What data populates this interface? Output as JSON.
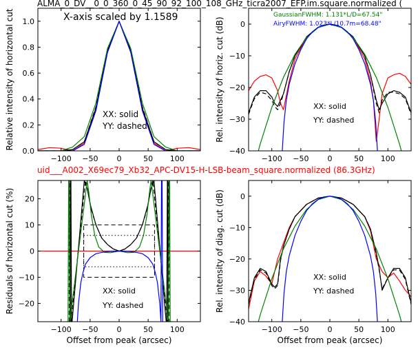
{
  "figure": {
    "top_title": "ALMA_0_DV__0_0_360_0_45_90_92_100_108_GHz_ticra2007_EFP.im.square.normalized (",
    "mid_title": "uid___A002_X69ec79_Xb32_APC-DV15-H-LSB-beam_square.normalized (86.3GHz)",
    "mid_title_color": "#ff0000"
  },
  "chart_data": [
    {
      "id": "p1",
      "type": "line",
      "ylabel": "Relative intensity of horizontal cut",
      "xlabel": "",
      "xlim": [
        -140,
        140
      ],
      "ylim": [
        0,
        1.1
      ],
      "xticks": [
        -100,
        -50,
        0,
        50,
        100
      ],
      "yticks": [
        0.0,
        0.2,
        0.4,
        0.6,
        0.8,
        1.0
      ],
      "ytick_labels": [
        "0.0",
        "0.2",
        "0.4",
        "0.6",
        "0.8",
        "1.0"
      ],
      "annotations": [
        "X-axis scaled by 1.1589",
        "XX: solid",
        "YY: dashed"
      ],
      "series": [
        {
          "color": "#ff0000",
          "style": "solid",
          "x": [
            -140,
            -120,
            -100,
            -90,
            -80,
            -60,
            -40,
            -20,
            0,
            20,
            40,
            60,
            80,
            90,
            100,
            120,
            140
          ],
          "y": [
            0.01,
            0.025,
            0.02,
            0.01,
            0.0,
            0.06,
            0.32,
            0.76,
            1.0,
            0.76,
            0.32,
            0.06,
            0.0,
            0.01,
            0.02,
            0.025,
            0.01
          ]
        },
        {
          "color": "#000000",
          "style": "solid",
          "x": [
            -140,
            -100,
            -80,
            -60,
            -40,
            -20,
            0,
            20,
            40,
            60,
            80,
            100,
            140
          ],
          "y": [
            0.0,
            0.0,
            0.01,
            0.07,
            0.33,
            0.77,
            1.0,
            0.77,
            0.33,
            0.07,
            0.01,
            0.0,
            0.0
          ]
        },
        {
          "color": "#000000",
          "style": "dashed",
          "x": [
            -140,
            -100,
            -80,
            -60,
            -40,
            -20,
            0,
            20,
            40,
            60,
            80,
            100,
            140
          ],
          "y": [
            0.0,
            0.0,
            0.01,
            0.07,
            0.34,
            0.78,
            1.0,
            0.78,
            0.34,
            0.07,
            0.01,
            0.0,
            0.0
          ]
        },
        {
          "color": "#008000",
          "style": "solid",
          "x": [
            -140,
            -100,
            -80,
            -60,
            -40,
            -20,
            0,
            20,
            40,
            60,
            80,
            100,
            140
          ],
          "y": [
            0.0,
            0.0,
            0.03,
            0.11,
            0.37,
            0.79,
            1.0,
            0.79,
            0.37,
            0.11,
            0.03,
            0.0,
            0.0
          ]
        },
        {
          "color": "#0000ff",
          "style": "solid",
          "x": [
            -140,
            -100,
            -80,
            -60,
            -40,
            -20,
            0,
            20,
            40,
            60,
            80,
            100,
            140
          ],
          "y": [
            0.0,
            0.0,
            0.0,
            0.05,
            0.31,
            0.76,
            1.0,
            0.76,
            0.31,
            0.05,
            0.0,
            0.0,
            0.0
          ]
        }
      ]
    },
    {
      "id": "p2",
      "type": "line",
      "ylabel": "Rel. intensity of horiz. cut (dB)",
      "xlabel": "",
      "xlim": [
        -140,
        140
      ],
      "ylim": [
        -40,
        5
      ],
      "xticks": [
        -100,
        -50,
        0,
        50,
        100
      ],
      "yticks": [
        0,
        -10,
        -20,
        -30,
        -40
      ],
      "ytick_labels": [
        "0",
        "−10",
        "−20",
        "−30",
        "−40"
      ],
      "annotations": [
        "XX: solid",
        "YY: dashed"
      ],
      "legend_text": [
        {
          "text": "GaussianFWHM: 1.131*L/D=67.54\"",
          "color": "#008000"
        },
        {
          "text": "AiryFWHM: 1.023*L/10.7m=68.48\"",
          "color": "#0000ff"
        }
      ],
      "series": [
        {
          "color": "#ff0000",
          "style": "solid",
          "x": [
            -140,
            -130,
            -120,
            -110,
            -100,
            -90,
            -85,
            -80,
            -70,
            -60,
            -40,
            -20,
            0,
            20,
            40,
            60,
            70,
            75,
            80,
            85,
            90,
            100,
            110,
            120,
            130,
            140
          ],
          "y": [
            -21,
            -18,
            -16.5,
            -16,
            -17,
            -21,
            -25,
            -27,
            -18,
            -11,
            -4,
            -1,
            0,
            -1,
            -4,
            -11,
            -18,
            -24,
            -37,
            -30,
            -22,
            -17,
            -16,
            -15.5,
            -16.5,
            -19
          ]
        },
        {
          "color": "#000000",
          "style": "solid",
          "x": [
            -140,
            -130,
            -120,
            -110,
            -100,
            -95,
            -90,
            -85,
            -80,
            -70,
            -60,
            -40,
            -20,
            0,
            20,
            40,
            60,
            70,
            80,
            85,
            90,
            100,
            110,
            120,
            130,
            140
          ],
          "y": [
            -28,
            -23,
            -21,
            -21,
            -23,
            -25,
            -26,
            -24,
            -22,
            -15,
            -10,
            -4,
            -1,
            0,
            -1,
            -4,
            -10,
            -16,
            -24,
            -27,
            -25,
            -22,
            -21,
            -21.5,
            -23,
            -28
          ]
        },
        {
          "color": "#000000",
          "style": "dashed",
          "x": [
            -140,
            -130,
            -120,
            -110,
            -100,
            -95,
            -90,
            -85,
            -80,
            -70,
            -60,
            -40,
            -20,
            0,
            20,
            40,
            60,
            70,
            80,
            85,
            90,
            100,
            110,
            120,
            130,
            140
          ],
          "y": [
            -28.5,
            -23.5,
            -21.5,
            -22,
            -24,
            -26,
            -27,
            -25,
            -22,
            -15,
            -10,
            -4,
            -1,
            0,
            -1,
            -4,
            -10,
            -16,
            -25,
            -28,
            -24,
            -21.5,
            -21.5,
            -22,
            -23.5,
            -28.5
          ]
        },
        {
          "color": "#008000",
          "style": "solid",
          "x": [
            -140,
            -120,
            -100,
            -80,
            -60,
            -40,
            -20,
            0,
            20,
            40,
            60,
            80,
            100,
            120,
            140
          ],
          "y": [
            -51.5,
            -37.8,
            -26.3,
            -16.8,
            -9.5,
            -4.2,
            -1.1,
            0,
            -1.1,
            -4.2,
            -9.5,
            -16.8,
            -26.3,
            -37.8,
            -51.5
          ]
        },
        {
          "color": "#0000ff",
          "style": "solid",
          "x": [
            -82,
            -79,
            -75,
            -70,
            -60,
            -50,
            -40,
            -30,
            -20,
            -10,
            0,
            10,
            20,
            30,
            40,
            50,
            60,
            70,
            75,
            79,
            82
          ],
          "y": [
            -40,
            -31,
            -24,
            -19,
            -12.5,
            -8,
            -4.6,
            -2.4,
            -1,
            -0.25,
            0,
            -0.25,
            -1,
            -2.4,
            -4.6,
            -8,
            -12.5,
            -19,
            -24,
            -31,
            -40
          ]
        }
      ]
    },
    {
      "id": "p3",
      "type": "line",
      "ylabel": "Residuals of horizontal cut (%)",
      "xlabel": "Offset from peak (arcsec)",
      "xlim": [
        -140,
        140
      ],
      "ylim": [
        -27,
        27
      ],
      "xticks": [
        -100,
        -50,
        0,
        50,
        100
      ],
      "yticks": [
        20,
        10,
        0,
        -10,
        -20
      ],
      "ytick_labels": [
        "20",
        "10",
        "0",
        "−10",
        "−20"
      ],
      "annotations": [
        "XX: solid",
        "YY: dashed"
      ],
      "series": [
        {
          "color": "#ff0000",
          "style": "solid",
          "x": [
            -140,
            140
          ],
          "y": [
            0,
            0
          ]
        },
        {
          "color": "#000000",
          "style": "solid",
          "x": [
            -84,
            -84,
            -83,
            -82,
            -81,
            -60,
            -55,
            -50,
            -40,
            -30,
            -20,
            -10,
            0,
            10,
            20,
            30,
            40,
            50,
            55,
            60,
            81,
            82,
            83,
            84,
            84
          ],
          "y": [
            -27,
            27,
            27,
            -27,
            -27,
            27,
            24,
            18,
            10,
            5,
            2.5,
            0.8,
            0,
            0.8,
            2.5,
            5,
            10,
            18,
            24,
            27,
            -27,
            -27,
            27,
            27,
            -27
          ]
        },
        {
          "color": "#000000",
          "style": "dashed",
          "x": [
            -86,
            -86,
            -85,
            -84,
            -83,
            -58,
            -53,
            -48,
            -40,
            -30,
            -20,
            -10,
            0,
            10,
            20,
            30,
            40,
            48,
            53,
            58,
            83,
            84,
            85,
            86,
            86
          ],
          "y": [
            -27,
            27,
            27,
            -27,
            -27,
            27,
            22,
            16,
            10,
            5,
            2.5,
            0.8,
            0,
            0.8,
            2.5,
            5,
            10,
            16,
            22,
            27,
            -27,
            -27,
            27,
            27,
            -27
          ]
        },
        {
          "color": "#008000",
          "style": "solid",
          "x": [
            -92,
            -88,
            -87,
            -86,
            -85,
            -55,
            -52,
            -48,
            -42,
            -35,
            -25,
            -15,
            0,
            15,
            25,
            35,
            42,
            48,
            52,
            55,
            85,
            86,
            87,
            88,
            92
          ],
          "y": [
            -27,
            -27,
            27,
            27,
            -27,
            27,
            22,
            14,
            6,
            1.5,
            -0.5,
            -0.6,
            0,
            -0.6,
            -0.5,
            1.5,
            6,
            14,
            22,
            27,
            -27,
            27,
            27,
            -27,
            -27
          ]
        },
        {
          "color": "#0000ff",
          "style": "solid",
          "x": [
            -72,
            -70,
            -66,
            -62,
            -58,
            -50,
            -40,
            -30,
            -20,
            -10,
            0,
            10,
            20,
            30,
            40,
            50,
            58,
            62,
            66,
            70,
            72,
            73,
            74,
            75
          ],
          "y": [
            -27,
            -20,
            -12,
            -8,
            -5,
            -2.5,
            -1,
            -0.5,
            -0.2,
            -0.1,
            0,
            -0.1,
            -0.2,
            -0.5,
            -1,
            -2.5,
            -5,
            -8,
            -12,
            -20,
            -27,
            27,
            27,
            -27
          ]
        }
      ],
      "boxes": [
        {
          "style": "dashed",
          "x": [
            -61,
            61
          ],
          "y": [
            -10,
            10
          ]
        },
        {
          "style": "dotted",
          "x": [
            -61,
            61
          ],
          "y": [
            -6,
            6
          ]
        }
      ]
    },
    {
      "id": "p4",
      "type": "line",
      "ylabel": "Rel. intensity of diag. cut (dB)",
      "xlabel": "Offset from peak (arcsec)",
      "xlim": [
        -140,
        140
      ],
      "ylim": [
        -40,
        5
      ],
      "xticks": [
        -100,
        -50,
        0,
        50,
        100
      ],
      "yticks": [
        0,
        -10,
        -20,
        -30,
        -40
      ],
      "ytick_labels": [
        "0",
        "−10",
        "−20",
        "−30",
        "−40"
      ],
      "annotations": [
        "XX: solid",
        "YY: dashed"
      ],
      "series": [
        {
          "color": "#ff0000",
          "style": "solid",
          "x": [
            -140,
            -130,
            -120,
            -110,
            -100,
            -90,
            -80,
            -70,
            -60,
            -40,
            -20,
            0,
            20,
            40,
            60,
            70,
            80,
            90,
            100,
            110,
            120,
            130,
            140
          ],
          "y": [
            -36,
            -27,
            -24,
            -25.5,
            -28,
            -20,
            -15,
            -10,
            -6.5,
            -2.6,
            -0.6,
            0,
            -0.6,
            -2.6,
            -6.5,
            -11,
            -20,
            -24,
            -26,
            -24.5,
            -27,
            -30,
            -32
          ]
        },
        {
          "color": "#000000",
          "style": "solid",
          "x": [
            -140,
            -130,
            -120,
            -110,
            -100,
            -95,
            -90,
            -85,
            -80,
            -70,
            -60,
            -40,
            -20,
            0,
            20,
            40,
            60,
            70,
            80,
            85,
            90,
            100,
            110,
            120,
            130,
            140
          ],
          "y": [
            -34,
            -26,
            -23,
            -24,
            -28,
            -29,
            -28,
            -20,
            -16,
            -10.5,
            -6.5,
            -2.6,
            -0.6,
            0,
            -0.6,
            -2.6,
            -6.5,
            -10.5,
            -18,
            -23,
            -30,
            -26,
            -23,
            -23,
            -26,
            -34
          ]
        },
        {
          "color": "#000000",
          "style": "dashed",
          "x": [
            -140,
            -130,
            -120,
            -110,
            -100,
            -95,
            -90,
            -85,
            -80,
            -70,
            -60,
            -40,
            -20,
            0,
            20,
            40,
            60,
            70,
            80,
            85,
            90,
            100,
            110,
            120,
            130,
            140
          ],
          "y": [
            -34.5,
            -26.5,
            -23.5,
            -24.5,
            -28.5,
            -29.5,
            -28.5,
            -20.5,
            -16,
            -10.5,
            -6.5,
            -2.6,
            -0.6,
            0,
            -0.6,
            -2.6,
            -6.5,
            -10.5,
            -18.5,
            -23.5,
            -29.5,
            -26,
            -23.5,
            -23.5,
            -26.5,
            -34.5
          ]
        },
        {
          "color": "#008000",
          "style": "solid",
          "x": [
            -140,
            -120,
            -100,
            -80,
            -60,
            -40,
            -20,
            0,
            20,
            40,
            60,
            80,
            100,
            120,
            140
          ],
          "y": [
            -51.5,
            -37.8,
            -26.3,
            -16.8,
            -9.5,
            -4.2,
            -1.1,
            0,
            -1.1,
            -4.2,
            -9.5,
            -16.8,
            -26.3,
            -37.8,
            -51.5
          ]
        },
        {
          "color": "#0000ff",
          "style": "solid",
          "x": [
            -82,
            -79,
            -75,
            -70,
            -60,
            -50,
            -40,
            -30,
            -20,
            -10,
            0,
            10,
            20,
            30,
            40,
            50,
            60,
            70,
            75,
            79,
            82
          ],
          "y": [
            -40,
            -31,
            -24,
            -19,
            -12.5,
            -8,
            -4.6,
            -2.4,
            -1,
            -0.25,
            0,
            -0.25,
            -1,
            -2.4,
            -4.6,
            -8,
            -12.5,
            -19,
            -24,
            -31,
            -40
          ]
        }
      ]
    }
  ]
}
